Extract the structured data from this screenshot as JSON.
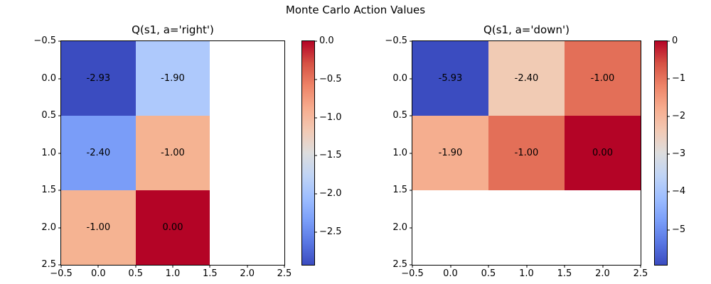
{
  "figure": {
    "title": "Monte Carlo Action Values",
    "background_color": "#FFFFFF"
  },
  "chart_data": [
    {
      "type": "heatmap",
      "title": "Q(s1, a='right')",
      "colormap": "coolwarm",
      "vmin": -2.93,
      "vmax": 0.0,
      "xlim": [
        -0.5,
        2.5
      ],
      "ylim": [
        2.5,
        -0.5
      ],
      "x_tick_labels": [
        "−0.5",
        "0.0",
        "0.5",
        "1.0",
        "1.5",
        "2.0",
        "2.5"
      ],
      "y_tick_labels": [
        "−0.5",
        "0.0",
        "0.5",
        "1.0",
        "1.5",
        "2.0",
        "2.5"
      ],
      "values": [
        [
          -2.93,
          -1.9,
          null
        ],
        [
          -2.4,
          -1.0,
          null
        ],
        [
          -1.0,
          0.0,
          null
        ]
      ],
      "cells": [
        [
          {
            "label": "-2.93",
            "color": "#3B4CC0"
          },
          {
            "label": "-1.90",
            "color": "#AEC9FC"
          },
          {
            "label": "",
            "color": "#FFFFFF"
          }
        ],
        [
          {
            "label": "-2.40",
            "color": "#7A9DF8"
          },
          {
            "label": "-1.00",
            "color": "#F5B392"
          },
          {
            "label": "",
            "color": "#FFFFFF"
          }
        ],
        [
          {
            "label": "-1.00",
            "color": "#F5B392"
          },
          {
            "label": "0.00",
            "color": "#B40426"
          },
          {
            "label": "",
            "color": "#FFFFFF"
          }
        ]
      ],
      "colorbar": {
        "vmin": -2.93,
        "vmax": 0.0,
        "ticks": [
          0.0,
          -0.5,
          -1.0,
          -1.5,
          -2.0,
          -2.5
        ],
        "tick_labels": [
          "0.0",
          "−0.5",
          "−1.0",
          "−1.5",
          "−2.0",
          "−2.5"
        ],
        "gradient_low_to_high": [
          "#3B4CC0",
          "#5977E3",
          "#7B9FF9",
          "#9EBEFF",
          "#C0D4F5",
          "#DDDDDD",
          "#F2C9B4",
          "#F7AC8E",
          "#EE8468",
          "#D65244",
          "#B40426"
        ]
      }
    },
    {
      "type": "heatmap",
      "title": "Q(s1, a='down')",
      "colormap": "coolwarm",
      "vmin": -5.93,
      "vmax": 0.0,
      "xlim": [
        -0.5,
        2.5
      ],
      "ylim": [
        2.5,
        -0.5
      ],
      "x_tick_labels": [
        "−0.5",
        "0.0",
        "0.5",
        "1.0",
        "1.5",
        "2.0",
        "2.5"
      ],
      "y_tick_labels": [
        "−0.5",
        "0.0",
        "0.5",
        "1.0",
        "1.5",
        "2.0",
        "2.5"
      ],
      "values": [
        [
          -5.93,
          -2.4,
          -1.0
        ],
        [
          -1.9,
          -1.0,
          0.0
        ],
        [
          null,
          null,
          null
        ]
      ],
      "cells": [
        [
          {
            "label": "-5.93",
            "color": "#3B4CC0"
          },
          {
            "label": "-2.40",
            "color": "#F1CBB4"
          },
          {
            "label": "-1.00",
            "color": "#E36F58"
          }
        ],
        [
          {
            "label": "-1.90",
            "color": "#F5AE8F"
          },
          {
            "label": "-1.00",
            "color": "#E36F58"
          },
          {
            "label": "0.00",
            "color": "#B40426"
          }
        ],
        [
          {
            "label": "",
            "color": "#FFFFFF"
          },
          {
            "label": "",
            "color": "#FFFFFF"
          },
          {
            "label": "",
            "color": "#FFFFFF"
          }
        ]
      ],
      "colorbar": {
        "vmin": -5.93,
        "vmax": 0.0,
        "ticks": [
          0,
          -1,
          -2,
          -3,
          -4,
          -5
        ],
        "tick_labels": [
          "0",
          "−1",
          "−2",
          "−3",
          "−4",
          "−5"
        ],
        "gradient_low_to_high": [
          "#3B4CC0",
          "#5977E3",
          "#7B9FF9",
          "#9EBEFF",
          "#C0D4F5",
          "#DDDDDD",
          "#F2C9B4",
          "#F7AC8E",
          "#EE8468",
          "#D65244",
          "#B40426"
        ]
      }
    }
  ]
}
